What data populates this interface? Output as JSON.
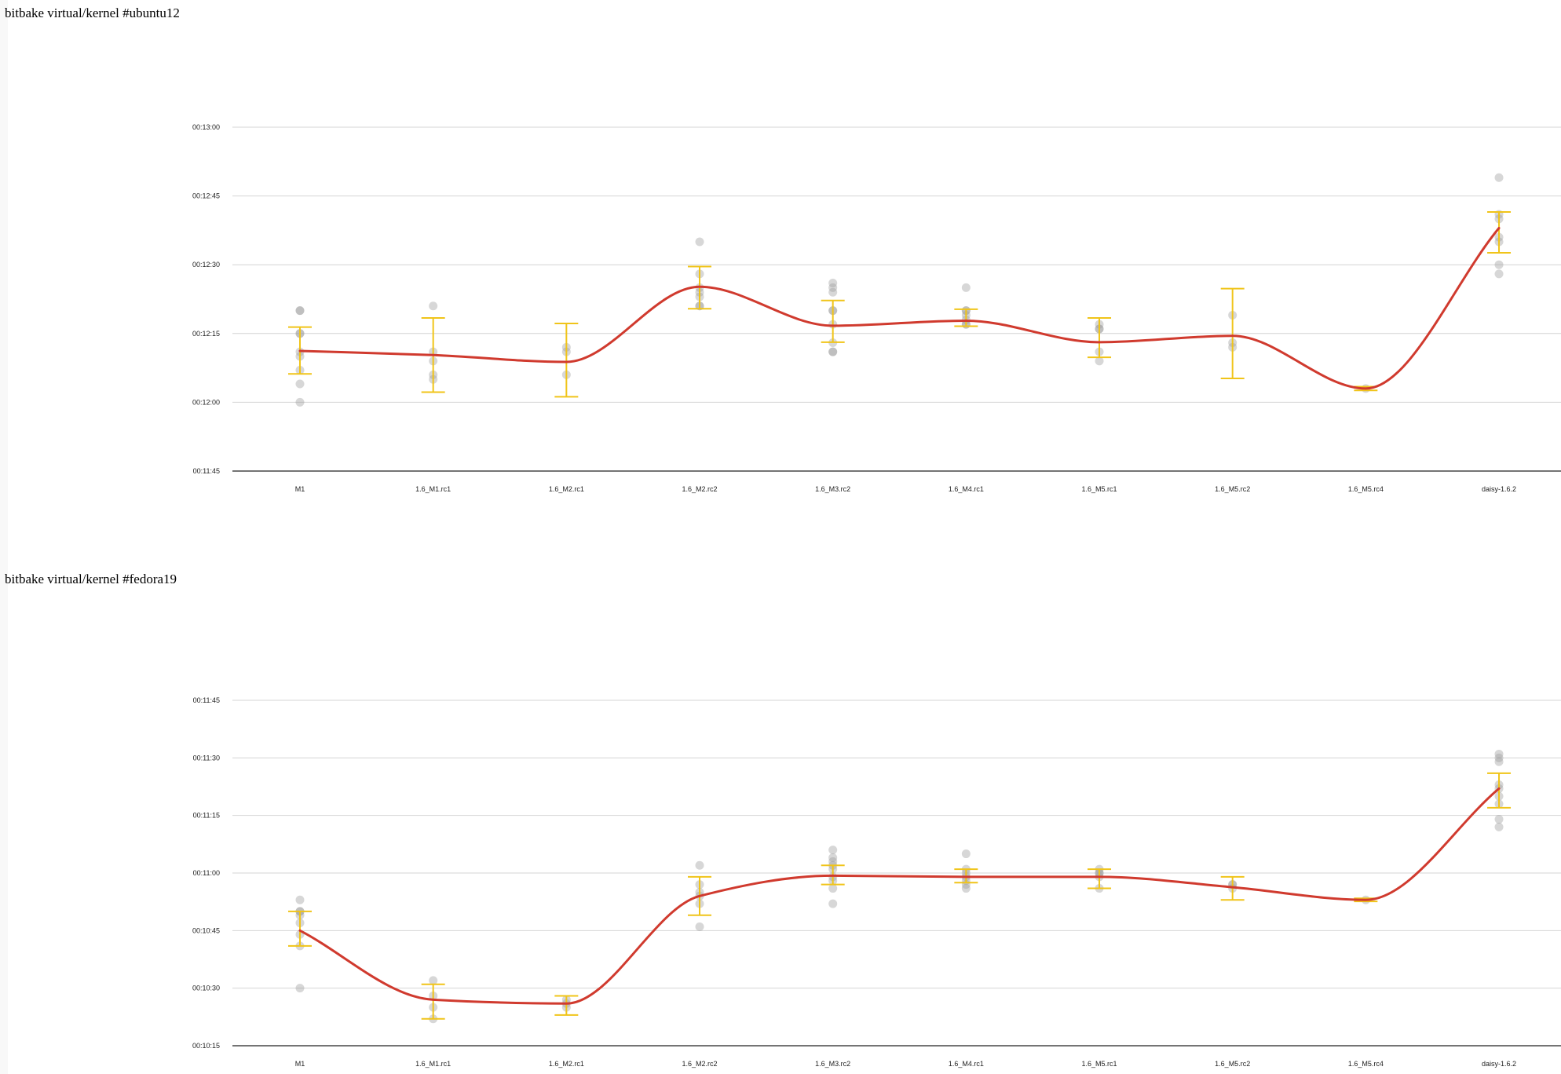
{
  "page": {
    "titles": [
      "bitbake virtual/kernel #ubuntu12",
      "bitbake virtual/kernel #fedora19"
    ]
  },
  "colors": {
    "trend": "#d03a2e",
    "error_bar": "#f0c419",
    "points": "#9a9a9a",
    "grid": "#d4d4d4",
    "axis": "#222222"
  },
  "chart_data": [
    {
      "type": "scatter",
      "title": "bitbake virtual/kernel #ubuntu12",
      "categories": [
        "M1",
        "1.6_M1.rc1",
        "1.6_M2.rc1",
        "1.6_M2.rc2",
        "1.6_M3.rc2",
        "1.6_M4.rc1",
        "1.6_M5.rc1",
        "1.6_M5.rc2",
        "1.6_M5.rc4",
        "daisy-1.6.2"
      ],
      "yticks": [
        "00:11:45",
        "00:12:00",
        "00:12:15",
        "00:12:30",
        "00:12:45",
        "00:13:00"
      ],
      "ylim_seconds": [
        705,
        780
      ],
      "grid": true,
      "series": [
        {
          "kind": "samples",
          "values_seconds": [
            [
              720,
              724,
              727,
              730,
              731,
              735,
              735,
              740,
              740
            ],
            [
              725,
              726,
              729,
              731,
              741
            ],
            [
              726,
              731,
              732
            ],
            [
              741,
              741,
              743,
              744,
              745,
              748,
              755
            ],
            [
              731,
              731,
              733,
              737,
              740,
              740,
              744,
              745,
              746
            ],
            [
              737,
              737,
              738,
              739,
              740,
              740,
              745
            ],
            [
              729,
              731,
              736,
              736,
              737
            ],
            [
              732,
              733,
              739
            ],
            [
              723
            ],
            [
              748,
              750,
              755,
              756,
              760,
              761,
              769
            ]
          ]
        },
        {
          "kind": "mean",
          "values_seconds": [
            731.2,
            730.3,
            728.8,
            745.2,
            736.7,
            737.8,
            733.1,
            734.5,
            723,
            758
          ]
        },
        {
          "kind": "error_bar",
          "low_seconds": [
            726.2,
            722.2,
            721.2,
            740.4,
            733.1,
            736.6,
            729.8,
            725.2,
            722.6,
            752.6
          ],
          "high_seconds": [
            736.4,
            738.4,
            737.2,
            749.6,
            742.2,
            740.3,
            738.4,
            744.8,
            723.4,
            761.5
          ]
        }
      ]
    },
    {
      "type": "scatter",
      "title": "bitbake virtual/kernel #fedora19",
      "categories": [
        "M1",
        "1.6_M1.rc1",
        "1.6_M2.rc1",
        "1.6_M2.rc2",
        "1.6_M3.rc2",
        "1.6_M4.rc1",
        "1.6_M5.rc1",
        "1.6_M5.rc2",
        "1.6_M5.rc4",
        "daisy-1.6.2"
      ],
      "yticks": [
        "00:10:15",
        "00:10:30",
        "00:10:45",
        "00:11:00",
        "00:11:15",
        "00:11:30",
        "00:11:45"
      ],
      "ylim_seconds": [
        615,
        705
      ],
      "grid": true,
      "series": [
        {
          "kind": "samples",
          "values_seconds": [
            [
              630,
              641,
              644,
              647,
              649,
              650,
              650,
              653
            ],
            [
              622,
              625,
              628,
              632
            ],
            [
              625,
              626,
              627
            ],
            [
              646,
              652,
              654,
              655,
              657,
              662
            ],
            [
              652,
              656,
              658,
              659,
              661,
              662,
              663,
              664,
              666
            ],
            [
              656,
              657,
              658,
              659,
              660,
              661,
              665
            ],
            [
              656,
              659,
              660,
              660,
              661
            ],
            [
              656,
              657,
              657
            ],
            [
              653
            ],
            [
              672,
              674,
              678,
              680,
              682,
              683,
              689,
              690,
              691
            ]
          ]
        },
        {
          "kind": "mean",
          "values_seconds": [
            645,
            627,
            626,
            654,
            659.3,
            659,
            659,
            656.3,
            653,
            682
          ]
        },
        {
          "kind": "error_bar",
          "low_seconds": [
            641,
            622,
            623,
            649,
            657,
            657.5,
            656,
            653,
            652.6,
            677
          ],
          "high_seconds": [
            650,
            631,
            628,
            659,
            662,
            661,
            661,
            659,
            653.4,
            686
          ]
        }
      ]
    }
  ]
}
